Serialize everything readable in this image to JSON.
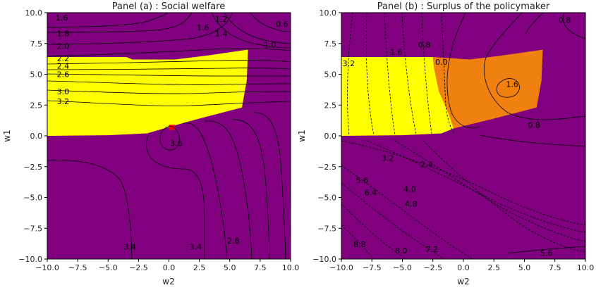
{
  "chart_data": [
    {
      "type": "contour",
      "title": "Panel (a) : Social welfare",
      "xlabel": "w2",
      "ylabel": "w1",
      "xlim": [
        -10,
        10
      ],
      "ylim": [
        -10,
        10
      ],
      "xticks": [
        "−10.0",
        "−7.5",
        "−5.0",
        "−2.5",
        "0.0",
        "2.5",
        "5.0",
        "7.5",
        "10.0"
      ],
      "yticks": [
        "10.0",
        "7.5",
        "5.0",
        "2.5",
        "0.0",
        "−2.5",
        "−5.0",
        "−7.5",
        "−10.0"
      ],
      "background_color": "#800080",
      "regions": [
        {
          "color": "#ffff00",
          "polygon": [
            [
              -10,
              0.0
            ],
            [
              -10,
              6.4
            ],
            [
              -3.5,
              6.4
            ],
            [
              -3,
              6.2
            ],
            [
              0.5,
              6.2
            ],
            [
              3,
              6.5
            ],
            [
              6.5,
              7.0
            ],
            [
              6.4,
              4.5
            ],
            [
              6,
              2.3
            ],
            [
              2.5,
              1.4
            ],
            [
              0.3,
              0.8
            ],
            [
              -1.8,
              0.2
            ],
            [
              -5,
              0.05
            ],
            [
              -10,
              0.0
            ]
          ]
        },
        {
          "color": "#ff0000",
          "polygon": [
            [
              0.0,
              0.5
            ],
            [
              0.5,
              0.5
            ],
            [
              0.5,
              0.9
            ],
            [
              0.0,
              0.9
            ]
          ]
        }
      ],
      "contour_labels": [
        {
          "text": "1.6",
          "x": -8.8,
          "y": 9.6
        },
        {
          "text": "1.8",
          "x": -8.7,
          "y": 8.3
        },
        {
          "text": "2.0",
          "x": -8.7,
          "y": 7.3
        },
        {
          "text": "2.2",
          "x": -8.7,
          "y": 6.3
        },
        {
          "text": "2.4",
          "x": -8.7,
          "y": 5.7
        },
        {
          "text": "2.6",
          "x": -8.7,
          "y": 5.0
        },
        {
          "text": "3.0",
          "x": -8.7,
          "y": 3.6
        },
        {
          "text": "3.2",
          "x": -8.7,
          "y": 2.8
        },
        {
          "text": "1.6",
          "x": 2.8,
          "y": 8.8
        },
        {
          "text": "1.2",
          "x": 4.3,
          "y": 9.5
        },
        {
          "text": "1.4",
          "x": 4.3,
          "y": 8.3
        },
        {
          "text": "1.0",
          "x": 8.3,
          "y": 7.4
        },
        {
          "text": "0.6",
          "x": 9.3,
          "y": 9.1
        },
        {
          "text": "3.6",
          "x": 0.6,
          "y": -0.6
        },
        {
          "text": "3.4",
          "x": -3.2,
          "y": -9.0
        },
        {
          "text": "3.4",
          "x": 2.2,
          "y": -9.0
        },
        {
          "text": "2.8",
          "x": 5.3,
          "y": -8.5
        }
      ]
    },
    {
      "type": "contour",
      "title": "Panel (b) : Surplus of the policymaker",
      "xlabel": "w2",
      "ylabel": "w1",
      "xlim": [
        -10,
        10
      ],
      "ylim": [
        -10,
        10
      ],
      "xticks": [
        "−10.0",
        "−7.5",
        "−5.0",
        "−2.5",
        "0.0",
        "2.5",
        "5.0",
        "7.5",
        "10.0"
      ],
      "yticks": [
        "10.0",
        "7.5",
        "5.0",
        "2.5",
        "0.0",
        "−2.5",
        "−5.0",
        "−7.5",
        "−10.0"
      ],
      "background_color": "#800080",
      "regions": [
        {
          "color": "#ffff00",
          "polygon": [
            [
              -10,
              0.0
            ],
            [
              -10,
              6.4
            ],
            [
              -2.5,
              6.4
            ],
            [
              -2.4,
              5.5
            ],
            [
              -2.0,
              3.6
            ],
            [
              -1.2,
              1.8
            ],
            [
              -0.8,
              0.6
            ],
            [
              -1.8,
              0.2
            ],
            [
              -5,
              0.05
            ],
            [
              -10,
              0.0
            ]
          ]
        },
        {
          "color": "#f08010",
          "polygon": [
            [
              -2.5,
              6.4
            ],
            [
              0.5,
              6.2
            ],
            [
              3,
              6.5
            ],
            [
              6.5,
              7.0
            ],
            [
              6.4,
              4.5
            ],
            [
              6,
              2.3
            ],
            [
              2.5,
              1.4
            ],
            [
              -0.8,
              0.6
            ],
            [
              -1.2,
              1.8
            ],
            [
              -2.0,
              3.6
            ],
            [
              -2.4,
              5.5
            ]
          ]
        }
      ],
      "contour_labels": [
        {
          "text": "3.2",
          "x": -9.4,
          "y": 5.9
        },
        {
          "text": "1.6",
          "x": -5.5,
          "y": 6.8
        },
        {
          "text": "0.8",
          "x": -3.2,
          "y": 7.4
        },
        {
          "text": "0.0",
          "x": -1.8,
          "y": 6.0
        },
        {
          "text": "1.6",
          "x": 4.0,
          "y": 4.2
        },
        {
          "text": "0.8",
          "x": 8.3,
          "y": 9.4
        },
        {
          "text": "0.8",
          "x": 5.8,
          "y": 0.9
        },
        {
          "text": "3.2",
          "x": -6.2,
          "y": -1.8
        },
        {
          "text": "2.4",
          "x": -3.0,
          "y": -2.3
        },
        {
          "text": "5.6",
          "x": -8.3,
          "y": -3.6
        },
        {
          "text": "6.4",
          "x": -7.6,
          "y": -4.6
        },
        {
          "text": "4.0",
          "x": -4.4,
          "y": -4.3
        },
        {
          "text": "4.8",
          "x": -4.3,
          "y": -5.5
        },
        {
          "text": "8.8",
          "x": -8.5,
          "y": -8.8
        },
        {
          "text": "8.0",
          "x": -5.1,
          "y": -9.3
        },
        {
          "text": "7.2",
          "x": -2.6,
          "y": -9.2
        },
        {
          "text": "5.6",
          "x": 6.8,
          "y": -9.5
        }
      ]
    }
  ]
}
